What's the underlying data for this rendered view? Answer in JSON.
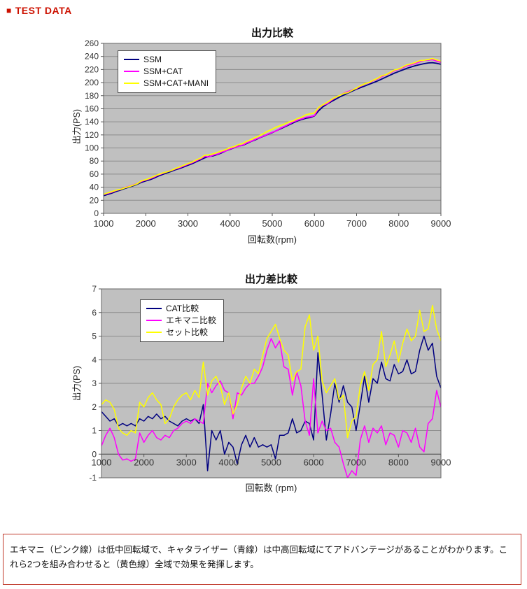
{
  "header": {
    "bullet": "■",
    "title": "TEST DATA"
  },
  "note": {
    "text": "エキマニ（ピンク線）は低中回転域で、キャタライザー（青線）は中高回転域にてアドバンテージがあることがわかります。これら2つを組み合わせると（黄色線）全域で効果を発揮します。"
  },
  "colors": {
    "accent_red": "#cc1100",
    "navy": "#000080",
    "magenta": "#ff00ff",
    "yellow": "#ffff00"
  },
  "chart_data": [
    {
      "type": "line",
      "title": "出力比較",
      "xlabel": "回転数(rpm)",
      "ylabel": "出力(PS)",
      "xlim": [
        1000,
        9000
      ],
      "ylim": [
        0,
        260
      ],
      "x_ticks": [
        1000,
        2000,
        3000,
        4000,
        5000,
        6000,
        7000,
        8000,
        9000
      ],
      "y_ticks": [
        0,
        20,
        40,
        60,
        80,
        100,
        120,
        140,
        160,
        180,
        200,
        220,
        240,
        260
      ],
      "grid": "horizontal",
      "legend_position": "top-left-inside",
      "plot_bg": "#c0c0c0",
      "grid_color": "#8c8c8c",
      "border_color": "#666666",
      "x_labels_at_zero": false,
      "x": [
        1000,
        1100,
        1200,
        1300,
        1400,
        1500,
        1600,
        1700,
        1800,
        1900,
        2000,
        2100,
        2200,
        2300,
        2400,
        2500,
        2600,
        2700,
        2800,
        2900,
        3000,
        3100,
        3200,
        3300,
        3400,
        3500,
        3600,
        3700,
        3800,
        3900,
        4000,
        4100,
        4200,
        4300,
        4400,
        4500,
        4600,
        4700,
        4800,
        4900,
        5000,
        5100,
        5200,
        5300,
        5400,
        5500,
        5600,
        5700,
        5800,
        5900,
        6000,
        6100,
        6200,
        6300,
        6400,
        6500,
        6600,
        6700,
        6800,
        6900,
        7000,
        7100,
        7200,
        7300,
        7400,
        7500,
        7600,
        7700,
        7800,
        7900,
        8000,
        8100,
        8200,
        8300,
        8400,
        8500,
        8600,
        8700,
        8800,
        8900,
        9000
      ],
      "series": [
        {
          "name": "SSM",
          "color": "#000080",
          "values": [
            27,
            29,
            31,
            33.5,
            35.5,
            38,
            40,
            42,
            44.5,
            47.5,
            49.5,
            51.5,
            54,
            57,
            59.5,
            62,
            64,
            66.5,
            68.5,
            71,
            73.5,
            76,
            79,
            82,
            85,
            87,
            88,
            90,
            92.5,
            95.5,
            98,
            100.5,
            103,
            104,
            107,
            110,
            112.5,
            115.5,
            118,
            121,
            123.5,
            126.5,
            129.5,
            132.5,
            135.5,
            138.5,
            141.5,
            143.5,
            145.5,
            146.5,
            149,
            157,
            163,
            167,
            171,
            174.5,
            178,
            181,
            184,
            187,
            190,
            192.5,
            195,
            197.5,
            200,
            202.5,
            205.5,
            208.5,
            211.5,
            214.5,
            217,
            219.5,
            222,
            224,
            226,
            227.5,
            229,
            230,
            230.5,
            229.5,
            228
          ]
        },
        {
          "name": "SSM+CAT",
          "color": "#ff00ff",
          "values": [
            28.8,
            30.6,
            32.4,
            35,
            36.7,
            39.3,
            41.2,
            43.3,
            45.7,
            49,
            50.9,
            53.1,
            55.5,
            58.7,
            61,
            63.6,
            65.4,
            67.8,
            69.7,
            72.4,
            75,
            77.4,
            80.5,
            83.3,
            87.1,
            86.3,
            89,
            90.6,
            93.5,
            95.5,
            98.5,
            100.8,
            102.6,
            104.4,
            107.8,
            110.3,
            113.2,
            115.8,
            118.4,
            121.3,
            123.9,
            126.3,
            130.3,
            133.3,
            136.4,
            140,
            142.4,
            144.5,
            146.9,
            147.8,
            149.6,
            161.3,
            165.5,
            167.6,
            172.7,
            177.5,
            180.2,
            183.9,
            186.2,
            189,
            191,
            194.6,
            198.3,
            199.7,
            203.2,
            205.5,
            209.4,
            211.7,
            214.6,
            218.3,
            220.4,
            223,
            226,
            227.4,
            229.5,
            231.9,
            234,
            234.4,
            235.2,
            232.8,
            230.8
          ]
        },
        {
          "name": "SSM+CAT+MANI",
          "color": "#ffff00",
          "values": [
            29.1,
            31.3,
            33.2,
            35.4,
            36.6,
            38.9,
            40.8,
            43,
            45.4,
            49.7,
            51.5,
            53.9,
            56.6,
            59.3,
            61.6,
            63.3,
            65.5,
            68.5,
            70.8,
            73.5,
            76.1,
            78.3,
            81.7,
            84.4,
            88.9,
            89.5,
            91.1,
            93.3,
            95.4,
            97.6,
            100.6,
            102.2,
            105.1,
            106.8,
            110.3,
            113,
            116.1,
            118.9,
            122.2,
            125.9,
            128.7,
            132,
            134.4,
            136.9,
            139.7,
            141.6,
            145,
            147.1,
            150.9,
            152.4,
            153.4,
            162,
            166.1,
            169.6,
            173.9,
            177.7,
            180.3,
            183.5,
            184.7,
            188.4,
            191.6,
            195.4,
            198.5,
            200.2,
            203.8,
            206.5,
            210.7,
            212.2,
            215.7,
            219.3,
            220.9,
            224.2,
            227.3,
            228.8,
            231,
            233.6,
            234.2,
            235.3,
            236.8,
            234.8,
            232.8
          ]
        }
      ]
    },
    {
      "type": "line",
      "title": "出力差比較",
      "xlabel": "回転数 (rpm)",
      "ylabel": "出力(PS)",
      "xlim": [
        1000,
        9000
      ],
      "ylim": [
        -1,
        7
      ],
      "x_ticks": [
        1000,
        2000,
        3000,
        4000,
        5000,
        6000,
        7000,
        8000,
        9000
      ],
      "y_ticks": [
        -1,
        0,
        1,
        2,
        3,
        4,
        5,
        6,
        7
      ],
      "grid": "horizontal",
      "legend_position": "top-left-inside",
      "plot_bg": "#c0c0c0",
      "grid_color": "#8c8c8c",
      "border_color": "#666666",
      "x_labels_at_zero": true,
      "x": [
        1000,
        1100,
        1200,
        1300,
        1400,
        1500,
        1600,
        1700,
        1800,
        1900,
        2000,
        2100,
        2200,
        2300,
        2400,
        2500,
        2600,
        2700,
        2800,
        2900,
        3000,
        3100,
        3200,
        3300,
        3400,
        3500,
        3600,
        3700,
        3800,
        3900,
        4000,
        4100,
        4200,
        4300,
        4400,
        4500,
        4600,
        4700,
        4800,
        4900,
        5000,
        5100,
        5200,
        5300,
        5400,
        5500,
        5600,
        5700,
        5800,
        5900,
        6000,
        6100,
        6200,
        6300,
        6400,
        6500,
        6600,
        6700,
        6800,
        6900,
        7000,
        7100,
        7200,
        7300,
        7400,
        7500,
        7600,
        7700,
        7800,
        7900,
        8000,
        8100,
        8200,
        8300,
        8400,
        8500,
        8600,
        8700,
        8800,
        8900,
        9000
      ],
      "series": [
        {
          "name": "CAT比較",
          "color": "#000080",
          "values": [
            1.8,
            1.6,
            1.4,
            1.5,
            1.2,
            1.3,
            1.2,
            1.3,
            1.2,
            1.5,
            1.4,
            1.6,
            1.5,
            1.7,
            1.5,
            1.6,
            1.4,
            1.3,
            1.2,
            1.4,
            1.5,
            1.4,
            1.5,
            1.3,
            2.1,
            -0.7,
            1.0,
            0.6,
            1.0,
            0.0,
            0.5,
            0.3,
            -0.4,
            0.4,
            0.8,
            0.3,
            0.7,
            0.3,
            0.4,
            0.3,
            0.4,
            -0.2,
            0.8,
            0.8,
            0.9,
            1.5,
            0.9,
            1.0,
            1.4,
            1.3,
            0.6,
            4.3,
            2.5,
            0.6,
            1.7,
            3.0,
            2.2,
            2.9,
            2.2,
            2.0,
            1.0,
            2.1,
            3.3,
            2.2,
            3.2,
            3.0,
            3.9,
            3.2,
            3.1,
            3.8,
            3.4,
            3.5,
            4.0,
            3.4,
            3.5,
            4.4,
            5.0,
            4.4,
            4.7,
            3.3,
            2.8
          ]
        },
        {
          "name": "エキマニ比較",
          "color": "#ff00ff",
          "values": [
            0.35,
            0.8,
            1.1,
            0.7,
            0.0,
            -0.25,
            -0.2,
            -0.3,
            -0.2,
            0.9,
            0.5,
            0.8,
            1.0,
            0.7,
            0.6,
            0.8,
            0.7,
            1.0,
            1.1,
            1.3,
            1.4,
            1.3,
            1.5,
            1.4,
            1.3,
            3.0,
            2.6,
            2.9,
            3.1,
            2.7,
            2.6,
            1.5,
            2.6,
            2.5,
            2.8,
            3.0,
            3.0,
            3.3,
            3.7,
            4.4,
            4.9,
            4.5,
            4.8,
            3.7,
            3.6,
            2.5,
            3.5,
            2.9,
            1.4,
            0.8,
            3.2,
            0.9,
            1.4,
            1.0,
            1.1,
            0.5,
            0.3,
            -0.4,
            -1.0,
            -0.7,
            -0.9,
            0.6,
            1.2,
            0.5,
            1.1,
            0.9,
            1.2,
            0.4,
            0.9,
            0.8,
            0.3,
            1.0,
            0.9,
            0.5,
            1.1,
            0.3,
            0.1,
            1.3,
            1.5,
            2.7,
            2.0
          ]
        },
        {
          "name": "セット比較",
          "color": "#ffff00",
          "values": [
            2.1,
            2.3,
            2.2,
            1.9,
            1.1,
            0.9,
            0.8,
            1.0,
            0.9,
            2.2,
            2.0,
            2.4,
            2.6,
            2.3,
            2.1,
            1.3,
            1.5,
            2.0,
            2.3,
            2.5,
            2.6,
            2.3,
            2.7,
            2.4,
            3.9,
            2.5,
            3.1,
            3.3,
            2.9,
            2.1,
            2.6,
            1.7,
            2.1,
            2.8,
            3.3,
            3.0,
            3.6,
            3.4,
            4.2,
            4.9,
            5.2,
            5.5,
            4.9,
            4.4,
            4.2,
            3.1,
            3.5,
            3.6,
            5.4,
            5.9,
            4.4,
            5.0,
            3.1,
            2.6,
            2.9,
            3.2,
            2.3,
            2.5,
            0.7,
            1.4,
            1.6,
            2.9,
            3.5,
            2.7,
            3.8,
            4.0,
            5.2,
            3.7,
            4.2,
            4.8,
            3.9,
            4.7,
            5.3,
            4.8,
            5.0,
            6.1,
            5.2,
            5.3,
            6.3,
            5.3,
            4.8
          ]
        }
      ]
    }
  ]
}
